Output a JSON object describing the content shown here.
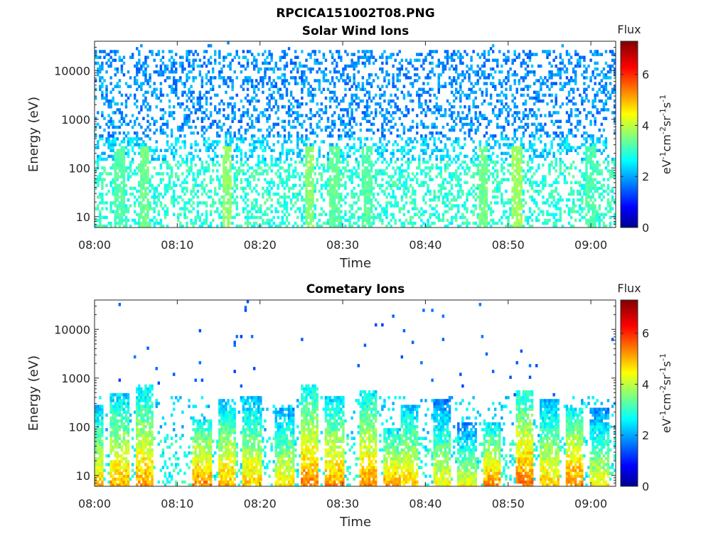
{
  "figure": {
    "title": "RPCICA151002T08.PNG"
  },
  "colors": {
    "axis": "#262626",
    "colormap": "jet",
    "colormap_stops": [
      "#00008f",
      "#0000ff",
      "#00ffff",
      "#ffff00",
      "#ff0000",
      "#800000"
    ]
  },
  "chart_data": [
    {
      "type": "heatmap",
      "title": "Solar Wind Ions",
      "xlabel": "Time",
      "ylabel": "Energy (eV)",
      "x_ticks": [
        "08:00",
        "08:10",
        "08:20",
        "08:30",
        "08:40",
        "08:50",
        "09:00"
      ],
      "x_range": [
        "08:00",
        "09:03"
      ],
      "y_scale": "log",
      "y_ticks": [
        "10",
        "100",
        "1000",
        "10000"
      ],
      "y_range": [
        6,
        40000
      ],
      "colorbar": {
        "title": "Flux",
        "label": "eV-1cm-2sr-1s-1",
        "ticks": [
          "0",
          "2",
          "4",
          "6"
        ],
        "range": [
          0,
          7.3
        ]
      },
      "description_of_values": "Sparse speckle across all energies: flux ~1.5-2.5 above ~300 eV, ~2.5-3.5 between 20-200 eV, up to ~3.5-4.5 in bursts below 30 eV",
      "bursts": [
        {
          "time": "08:03",
          "flux_peak": 3.4
        },
        {
          "time": "08:06",
          "flux_peak": 3.6
        },
        {
          "time": "08:16",
          "flux_peak": 3.8
        },
        {
          "time": "08:26",
          "flux_peak": 3.8
        },
        {
          "time": "08:29",
          "flux_peak": 3.5
        },
        {
          "time": "08:33",
          "flux_peak": 3.4
        },
        {
          "time": "08:47",
          "flux_peak": 3.6
        },
        {
          "time": "08:51",
          "flux_peak": 3.9
        },
        {
          "time": "09:00",
          "flux_peak": 3.3
        }
      ]
    },
    {
      "type": "heatmap",
      "title": "Cometary Ions",
      "xlabel": "Time",
      "ylabel": "Energy (eV)",
      "x_ticks": [
        "08:00",
        "08:10",
        "08:20",
        "08:30",
        "08:40",
        "08:50",
        "09:00"
      ],
      "x_range": [
        "08:00",
        "09:03"
      ],
      "y_scale": "log",
      "y_ticks": [
        "10",
        "100",
        "1000",
        "10000"
      ],
      "y_range": [
        6,
        40000
      ],
      "colorbar": {
        "title": "Flux",
        "label": "eV-1cm-2sr-1s-1",
        "ticks": [
          "0",
          "2",
          "4",
          "6"
        ],
        "range": [
          0,
          7.3
        ]
      },
      "description_of_values": "Vertical bursts of flux from ~6 eV up to ~200-700 eV; peak flux ~5-5.5 at 10-60 eV; background ~2-3; isolated single hits ~1.5 up to ~10000 eV",
      "bursts": [
        {
          "time": "08:00",
          "top_eV": 300,
          "flux_peak": 5.0
        },
        {
          "time": "08:03",
          "top_eV": 500,
          "flux_peak": 5.2
        },
        {
          "time": "08:06",
          "top_eV": 700,
          "flux_peak": 5.3
        },
        {
          "time": "08:13",
          "top_eV": 150,
          "flux_peak": 5.5
        },
        {
          "time": "08:16",
          "top_eV": 350,
          "flux_peak": 5.2
        },
        {
          "time": "08:19",
          "top_eV": 400,
          "flux_peak": 5.0
        },
        {
          "time": "08:23",
          "top_eV": 250,
          "flux_peak": 4.8
        },
        {
          "time": "08:26",
          "top_eV": 700,
          "flux_peak": 5.5
        },
        {
          "time": "08:29",
          "top_eV": 450,
          "flux_peak": 5.3
        },
        {
          "time": "08:33",
          "top_eV": 550,
          "flux_peak": 5.4
        },
        {
          "time": "08:36",
          "top_eV": 100,
          "flux_peak": 5.3
        },
        {
          "time": "08:38",
          "top_eV": 300,
          "flux_peak": 5.0
        },
        {
          "time": "08:42",
          "top_eV": 350,
          "flux_peak": 4.6
        },
        {
          "time": "08:45",
          "top_eV": 120,
          "flux_peak": 4.5
        },
        {
          "time": "08:48",
          "top_eV": 120,
          "flux_peak": 5.4
        },
        {
          "time": "08:52",
          "top_eV": 600,
          "flux_peak": 5.6
        },
        {
          "time": "08:55",
          "top_eV": 350,
          "flux_peak": 5.0
        },
        {
          "time": "08:58",
          "top_eV": 250,
          "flux_peak": 5.5
        },
        {
          "time": "09:01",
          "top_eV": 250,
          "flux_peak": 4.6
        }
      ]
    }
  ]
}
